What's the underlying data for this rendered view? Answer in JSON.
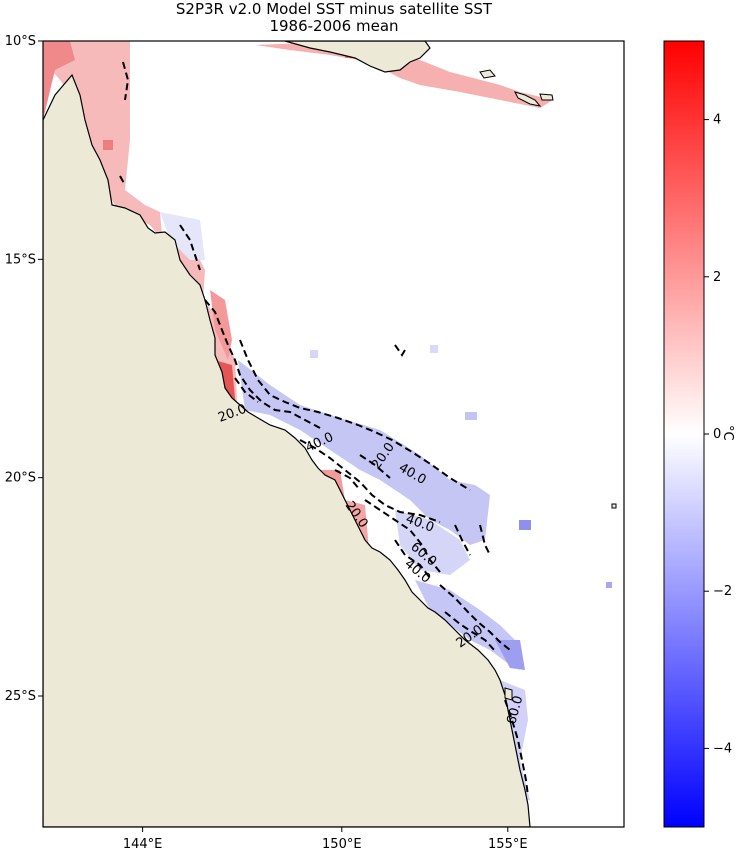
{
  "title": "S2P3R v2.0 Model SST minus satellite SST",
  "subtitle": "1986-2006 mean",
  "map": {
    "lon_range": [
      141.0,
      158.5
    ],
    "lat_range": [
      -28.0,
      -10.0
    ],
    "lat_ticks": [
      {
        "value": -10,
        "label": "10°S"
      },
      {
        "value": -15,
        "label": "15°S"
      },
      {
        "value": -20,
        "label": "20°S"
      },
      {
        "value": -25,
        "label": "25°S"
      }
    ],
    "lon_ticks": [
      {
        "value": 144,
        "label": "144°E"
      },
      {
        "value": 150,
        "label": "150°E"
      },
      {
        "value": 155,
        "label": "155°E"
      }
    ],
    "land_color": "#ede9d7",
    "coast_color": "#000000",
    "contour_labels": [
      "20.0",
      "40.0",
      "20.0",
      "40.0",
      "40.0",
      "20.0",
      "60.0",
      "40.0",
      "20.0",
      "60.0"
    ]
  },
  "colorbar": {
    "unit": "°C",
    "range": [
      -5,
      5
    ],
    "ticks": [
      {
        "value": 4,
        "label": "4"
      },
      {
        "value": 2,
        "label": "2"
      },
      {
        "value": 0,
        "label": "0"
      },
      {
        "value": -2,
        "label": "−2"
      },
      {
        "value": -4,
        "label": "−4"
      }
    ],
    "colors": {
      "low": "#0000ff",
      "mid": "#ffffff",
      "high": "#ff0000"
    }
  }
}
